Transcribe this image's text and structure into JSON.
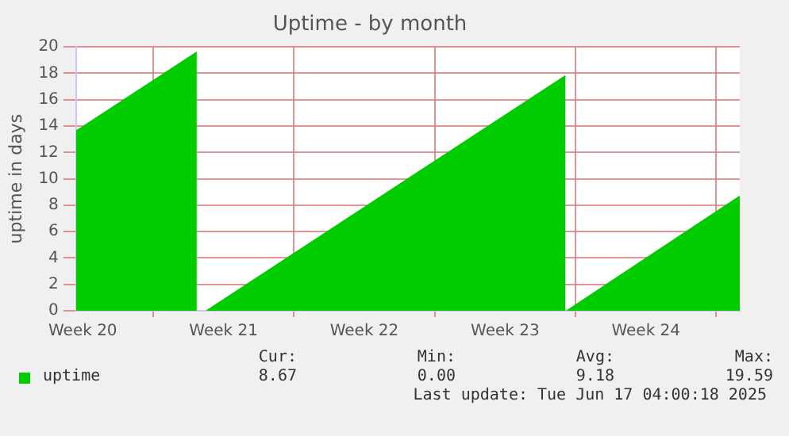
{
  "chart_data": {
    "type": "area",
    "title": "Uptime - by month",
    "ylabel": "uptime in days",
    "xlim": [
      "2025-05-15T04:00",
      "2025-06-17T04:00"
    ],
    "xticks": [
      {
        "value": "2025-05-15T12:00",
        "label": "Week 20"
      },
      {
        "value": "2025-05-19",
        "label": null
      },
      {
        "value": "2025-05-22T12:00",
        "label": "Week 21"
      },
      {
        "value": "2025-05-26",
        "label": null
      },
      {
        "value": "2025-05-29T12:00",
        "label": "Week 22"
      },
      {
        "value": "2025-06-02",
        "label": null
      },
      {
        "value": "2025-06-05T12:00",
        "label": "Week 23"
      },
      {
        "value": "2025-06-09",
        "label": null
      },
      {
        "value": "2025-06-12T12:00",
        "label": "Week 24"
      },
      {
        "value": "2025-06-16",
        "label": null
      }
    ],
    "ylim": [
      0,
      20
    ],
    "yticks": [
      0,
      2,
      4,
      6,
      8,
      10,
      12,
      14,
      16,
      18,
      20
    ],
    "grid": true,
    "legend": "bottom",
    "series": [
      {
        "name": "uptime",
        "color": "#00cc00",
        "x": [
          "2025-05-15T04:00",
          "2025-05-21T04:00",
          "2025-05-21T10:00",
          "2025-05-21T16:00",
          "2025-06-08T12:00",
          "2025-06-08T13:00",
          "2025-06-08T14:00",
          "2025-06-17T04:00"
        ],
        "values": [
          13.6,
          19.59,
          null,
          0,
          17.8,
          null,
          0,
          8.67
        ]
      }
    ],
    "annotations": [
      "Cur:",
      "Min:",
      "Avg:",
      "Max:",
      "8.67",
      "0.00",
      "9.18",
      "19.59",
      "Last update: Tue Jun 17 04:00:18 2025"
    ]
  }
}
